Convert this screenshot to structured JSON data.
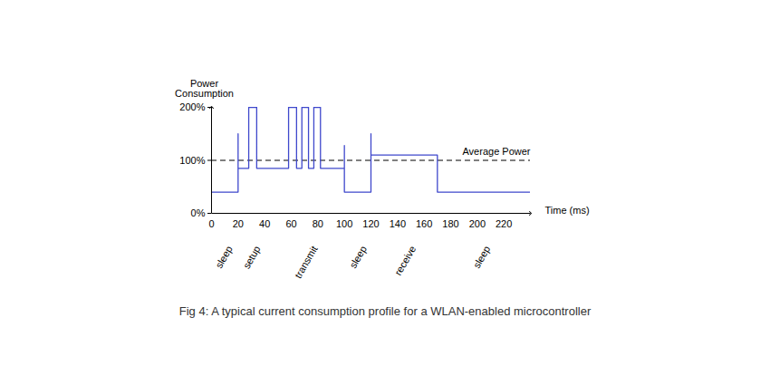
{
  "chart_data": {
    "type": "line",
    "caption": "Fig 4: A typical current consumption profile for a WLAN-enabled microcontroller",
    "ylabel": "Power Consumption",
    "xlabel": "Time (ms)",
    "x": [
      0,
      20,
      20,
      20,
      28,
      28,
      34,
      34,
      58,
      58,
      64,
      64,
      68,
      68,
      73,
      73,
      77,
      77,
      82,
      82,
      100,
      100,
      100,
      120,
      120,
      120,
      170,
      170,
      240
    ],
    "values": [
      40,
      40,
      150,
      85,
      85,
      200,
      200,
      85,
      85,
      200,
      200,
      85,
      85,
      200,
      200,
      85,
      85,
      200,
      200,
      85,
      85,
      128,
      40,
      40,
      150,
      110,
      110,
      40,
      40
    ],
    "color": "#3f48cc",
    "line_style": "solid",
    "reference_lines": [
      {
        "value": 100,
        "label": "Average Power",
        "line_style": "dashed",
        "color": "#000000"
      }
    ],
    "annotations": [
      {
        "text": "sleep",
        "x": 14
      },
      {
        "text": "setup",
        "x": 35
      },
      {
        "text": "transmit",
        "x": 78
      },
      {
        "text": "sleep",
        "x": 115
      },
      {
        "text": "receive",
        "x": 152
      },
      {
        "text": "sleep",
        "x": 208
      }
    ],
    "xlim": [
      0,
      240
    ],
    "xticks": [
      0,
      20,
      40,
      60,
      80,
      100,
      120,
      140,
      160,
      180,
      200,
      220
    ],
    "ylim": [
      0,
      200
    ],
    "yticks": [
      {
        "value": 0,
        "label": "0%"
      },
      {
        "value": 100,
        "label": "100%"
      },
      {
        "value": 200,
        "label": "200%"
      }
    ]
  }
}
